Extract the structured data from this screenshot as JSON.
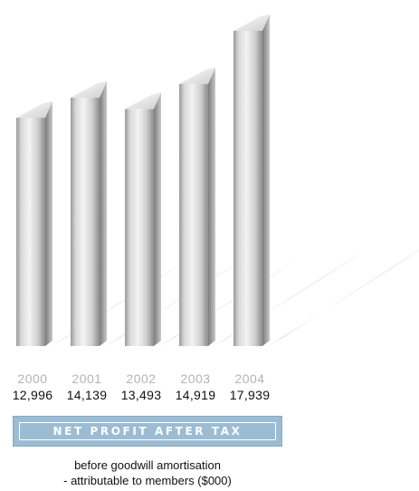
{
  "chart_data": {
    "type": "bar",
    "categories": [
      "2000",
      "2001",
      "2002",
      "2003",
      "2004"
    ],
    "values": [
      12996,
      14139,
      13493,
      14919,
      17939
    ],
    "value_labels": [
      "12,996",
      "14,139",
      "13,493",
      "14,919",
      "17,939"
    ],
    "title": "NET PROFIT AFTER TAX",
    "subtitle_lines": [
      "before goodwill amortisation",
      "- attributable to members ($000)"
    ],
    "xlabel": "",
    "ylabel": "",
    "grid": false,
    "legend": "none"
  },
  "colors": {
    "title_bar": "#9bbcd3",
    "title_text": "#ffffff",
    "year_text": "#b3b3b3",
    "value_text": "#111111",
    "bar_light": "#f0f0f0",
    "bar_dark": "#6e6e6e",
    "shadow": "#e6e6e6"
  }
}
